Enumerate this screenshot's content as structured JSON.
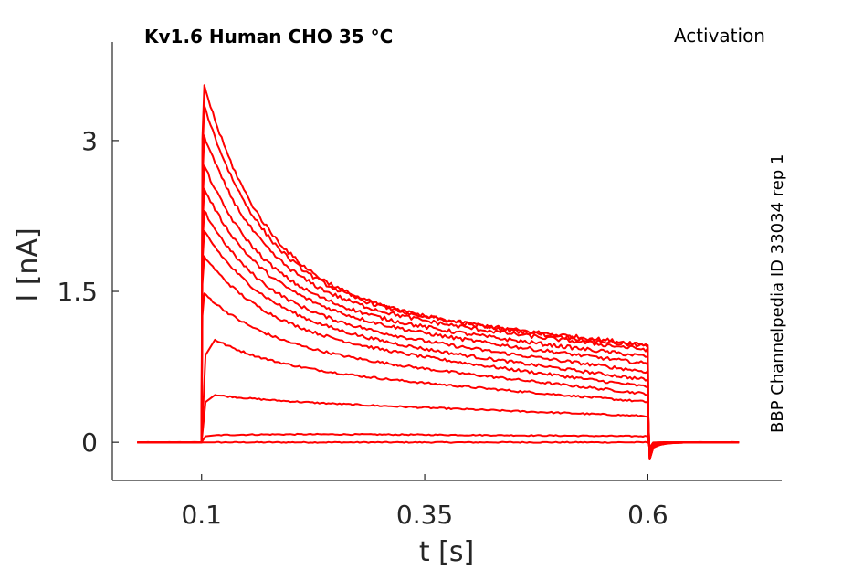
{
  "chart_data": {
    "type": "line",
    "title": "Kv1.6  Human  CHO  35 °C",
    "protocol": "Activation",
    "side_label": "BBP Channelpedia ID 33034 rep 1",
    "xlabel": "t [s]",
    "ylabel": "I [nA]",
    "xlim": [
      0.0,
      0.75
    ],
    "ylim": [
      -0.38,
      3.98
    ],
    "xticks": [
      0.1,
      0.35,
      0.6
    ],
    "xtick_labels": [
      "0.1",
      "0.35",
      "0.6"
    ],
    "yticks": [
      0,
      1.5,
      3
    ],
    "ytick_labels": [
      "0",
      "1.5",
      "3"
    ],
    "grid": false,
    "legend": "none",
    "trace_color": "#ff0000",
    "step_on": 0.1,
    "step_off": 0.6,
    "t_start": 0.028,
    "t_end": 0.705,
    "series": [
      {
        "peak": 0.0,
        "plateau": 0.0,
        "end": 0.0
      },
      {
        "peak": 0.07,
        "plateau": 0.09,
        "end": 0.06
      },
      {
        "peak": 0.47,
        "plateau": 0.42,
        "end": 0.26
      },
      {
        "peak": 1.02,
        "plateau": 0.75,
        "end": 0.4
      },
      {
        "peak": 1.48,
        "plateau": 0.95,
        "end": 0.48
      },
      {
        "peak": 1.85,
        "plateau": 1.1,
        "end": 0.55
      },
      {
        "peak": 2.1,
        "plateau": 1.18,
        "end": 0.62
      },
      {
        "peak": 2.3,
        "plateau": 1.25,
        "end": 0.7
      },
      {
        "peak": 2.52,
        "plateau": 1.32,
        "end": 0.78
      },
      {
        "peak": 2.75,
        "plateau": 1.36,
        "end": 0.85
      },
      {
        "peak": 3.05,
        "plateau": 1.4,
        "end": 0.92
      },
      {
        "peak": 3.35,
        "plateau": 1.42,
        "end": 0.97
      },
      {
        "peak": 3.55,
        "plateau": 1.43,
        "end": 0.95
      }
    ]
  }
}
